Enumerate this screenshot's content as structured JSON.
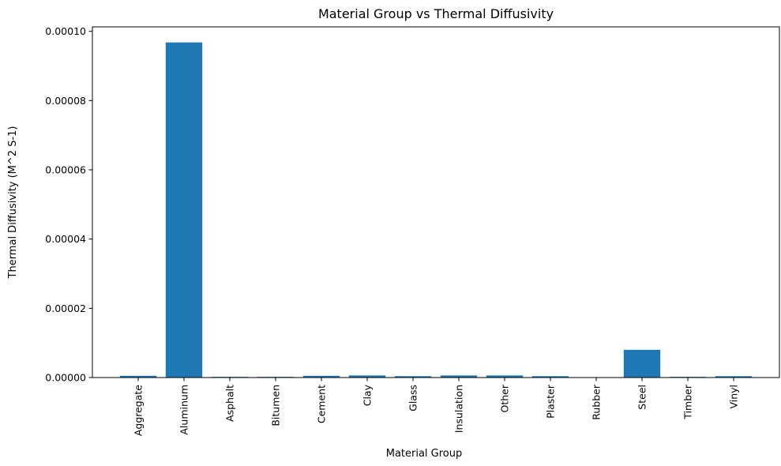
{
  "chart_data": {
    "type": "bar",
    "title": "Material Group vs Thermal Diffusivity",
    "xlabel": "Material Group",
    "ylabel": "Thermal Diffusivity (M^2 S-1)",
    "categories": [
      "Aggregate",
      "Aluminum",
      "Asphalt",
      "Bitumen",
      "Cement",
      "Clay",
      "Glass",
      "Insulation",
      "Other",
      "Plaster",
      "Rubber",
      "Steel",
      "Timber",
      "Vinyl"
    ],
    "values": [
      5e-07,
      9.68e-05,
      2e-07,
      2e-07,
      5e-07,
      6e-07,
      4e-07,
      6e-07,
      6e-07,
      4e-07,
      8e-08,
      8e-06,
      2e-07,
      4e-07
    ],
    "ylim": [
      0,
      0.0001013
    ],
    "yticks": [
      0,
      2e-05,
      4e-05,
      6e-05,
      8e-05,
      0.0001
    ],
    "ytick_labels": [
      "0.00000",
      "0.00002",
      "0.00004",
      "0.00006",
      "0.00008",
      "0.00010"
    ],
    "bar_color": "#1f77b4",
    "grid": false,
    "legend": "none"
  }
}
